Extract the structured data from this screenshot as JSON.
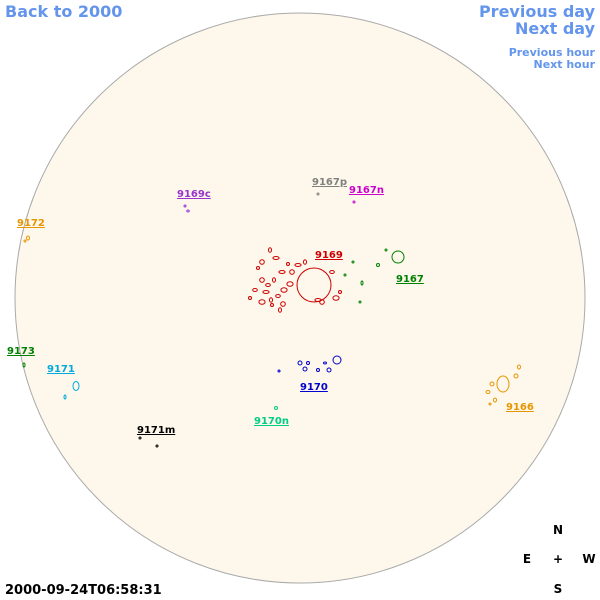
{
  "navigation": {
    "back": "Back to 2000",
    "previous_day": "Previous day",
    "next_day": "Next day",
    "previous_hour": "Previous hour",
    "next_hour": "Next hour"
  },
  "regions": [
    {
      "label": "9169c",
      "color": "#9933cc"
    },
    {
      "label": "9167p",
      "color": "#808080"
    },
    {
      "label": "9167n",
      "color": "#cc00cc"
    },
    {
      "label": "9172",
      "color": "#e69500"
    },
    {
      "label": "9169",
      "color": "#cc0000"
    },
    {
      "label": "9167",
      "color": "#008000"
    },
    {
      "label": "9173",
      "color": "#008000"
    },
    {
      "label": "9171",
      "color": "#00aadd"
    },
    {
      "label": "9170",
      "color": "#0000cc"
    },
    {
      "label": "9166",
      "color": "#e69500"
    },
    {
      "label": "9170n",
      "color": "#00cc88"
    },
    {
      "label": "9171m",
      "color": "#000000"
    }
  ],
  "compass": {
    "north": "N",
    "east": "E",
    "center": "+",
    "west": "W",
    "south": "S"
  },
  "timestamp": "2000-09-24T06:58:31"
}
